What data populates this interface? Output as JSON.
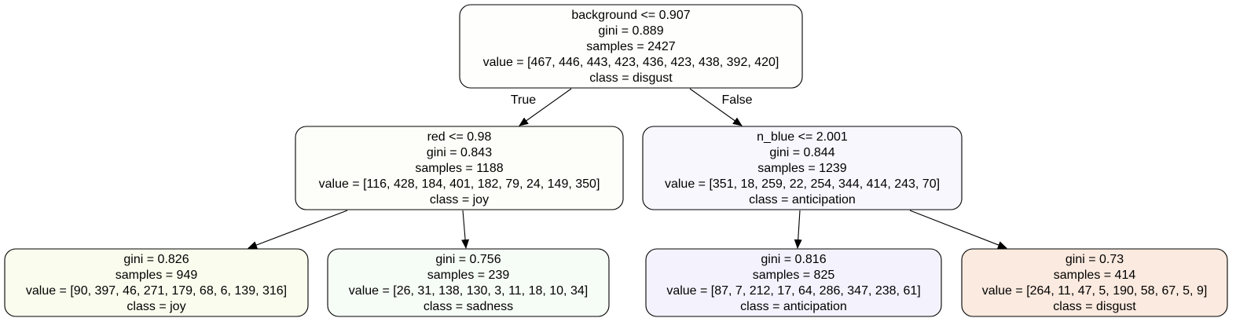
{
  "tree": {
    "nodes": [
      {
        "id": "root",
        "lines": [
          "background <= 0.907",
          "gini = 0.889",
          "samples = 2427",
          "value = [467, 446, 443, 423, 436, 423, 438, 392, 420]",
          "class = disgust"
        ],
        "fill": "#fefefd"
      },
      {
        "id": "left",
        "lines": [
          "red <= 0.98",
          "gini = 0.843",
          "samples = 1188",
          "value = [116, 428, 184, 401, 182, 79, 24, 149, 350]",
          "class = joy"
        ],
        "fill": "#fdfef9"
      },
      {
        "id": "right",
        "lines": [
          "n_blue <= 2.001",
          "gini = 0.844",
          "samples = 1239",
          "value = [351, 18, 259, 22, 254, 344, 414, 243, 70]",
          "class = anticipation"
        ],
        "fill": "#f8f7fe"
      },
      {
        "id": "leaf-joy",
        "lines": [
          "gini = 0.826",
          "samples = 949",
          "value = [90, 397, 46, 271, 179, 68, 6, 139, 316]",
          "class = joy"
        ],
        "fill": "#fafdee"
      },
      {
        "id": "leaf-sadness",
        "lines": [
          "gini = 0.756",
          "samples = 239",
          "value = [26, 31, 138, 130, 3, 11, 18, 10, 34]",
          "class = sadness"
        ],
        "fill": "#f6fcf6"
      },
      {
        "id": "leaf-anticipation",
        "lines": [
          "gini = 0.816",
          "samples = 825",
          "value = [87, 7, 212, 17, 64, 286, 347, 238, 61]",
          "class = anticipation"
        ],
        "fill": "#f4f2fd"
      },
      {
        "id": "leaf-disgust",
        "lines": [
          "gini = 0.73",
          "samples = 414",
          "value = [264, 11, 47, 5, 190, 58, 67, 5, 9]",
          "class = disgust"
        ],
        "fill": "#fbeadf"
      }
    ],
    "edges": [
      {
        "from": "root",
        "to": "left",
        "label": "True"
      },
      {
        "from": "root",
        "to": "right",
        "label": "False"
      },
      {
        "from": "left",
        "to": "leaf-joy",
        "label": ""
      },
      {
        "from": "left",
        "to": "leaf-sadness",
        "label": ""
      },
      {
        "from": "right",
        "to": "leaf-anticipation",
        "label": ""
      },
      {
        "from": "right",
        "to": "leaf-disgust",
        "label": ""
      }
    ]
  }
}
